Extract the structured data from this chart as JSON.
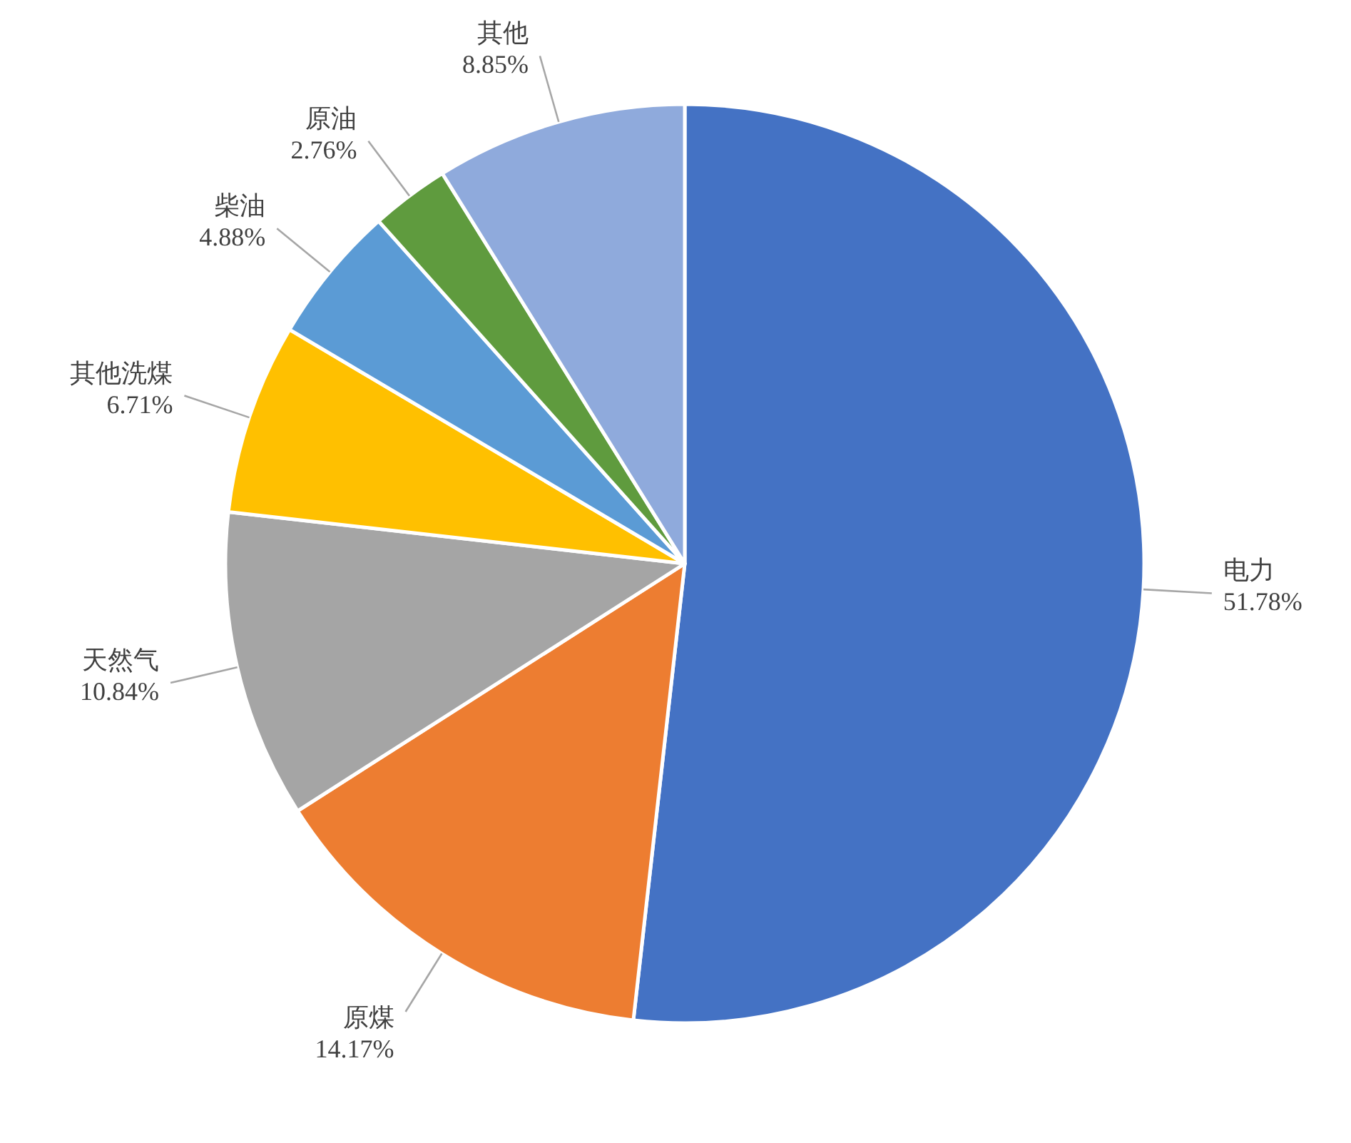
{
  "chart_data": {
    "type": "pie",
    "categories": [
      "电力",
      "原煤",
      "天然气",
      "其他洗煤",
      "柴油",
      "原油",
      "其他"
    ],
    "values": [
      51.78,
      14.17,
      10.84,
      6.71,
      4.88,
      2.76,
      8.85
    ],
    "value_labels": [
      "51.78%",
      "14.17%",
      "10.84%",
      "6.71%",
      "4.88%",
      "2.76%",
      "8.85%"
    ],
    "colors": [
      "#4472c4",
      "#ed7d31",
      "#a5a5a5",
      "#ffc000",
      "#5b9bd5",
      "#5f9b3e",
      "#8faadc"
    ]
  }
}
